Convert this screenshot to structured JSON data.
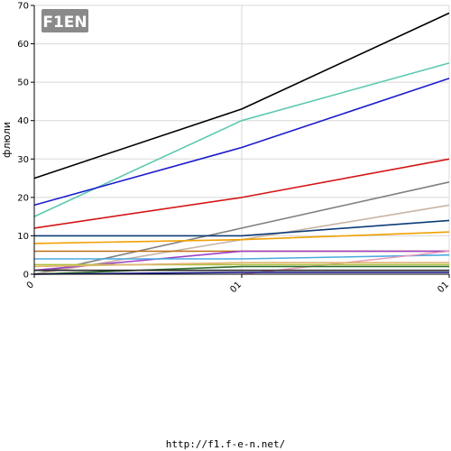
{
  "chart_data": {
    "type": "line",
    "ylabel": "флюли",
    "categories": [
      "0",
      "01",
      "01"
    ],
    "ylim": [
      0,
      70
    ],
    "yticks": [
      0,
      10,
      20,
      30,
      40,
      50,
      60,
      70
    ],
    "grid": true,
    "series": [
      {
        "color": "#000000",
        "values": [
          25,
          43,
          68
        ]
      },
      {
        "color": "#5cc8b0",
        "values": [
          15,
          40,
          55
        ]
      },
      {
        "color": "#1c1ccc",
        "values": [
          18,
          33,
          51
        ]
      },
      {
        "color": "#d41616",
        "values": [
          12,
          20,
          30
        ]
      },
      {
        "color": "#808080",
        "values": [
          0,
          12,
          24
        ]
      },
      {
        "color": "#c8b4a4",
        "values": [
          0,
          9,
          18
        ]
      },
      {
        "color": "#0c3c78",
        "values": [
          10,
          10,
          14
        ]
      },
      {
        "color": "#f0a000",
        "values": [
          8,
          9,
          11
        ]
      },
      {
        "color": "#c06e14",
        "values": [
          6,
          6,
          6
        ]
      },
      {
        "color": "#9b3ec8",
        "values": [
          1,
          6,
          6
        ]
      },
      {
        "color": "#4aa8e0",
        "values": [
          4,
          4,
          5
        ]
      },
      {
        "color": "#e89cbc",
        "values": [
          null,
          0,
          6
        ]
      },
      {
        "color": "#b0c040",
        "values": [
          2.5,
          2.5,
          2.5
        ]
      },
      {
        "color": "#2c6e2c",
        "values": [
          0,
          2,
          2
        ]
      },
      {
        "color": "#e0b470",
        "values": [
          2,
          3,
          3
        ]
      },
      {
        "color": "#2a2a2a",
        "values": [
          1,
          1,
          1
        ]
      },
      {
        "color": "#1c1c8c",
        "values": [
          0,
          0.5,
          0.5
        ]
      }
    ]
  },
  "logo": {
    "text": "F1EN",
    "brand_color": "#f29400"
  },
  "footer": {
    "url": "http://f1.f-e-n.net/"
  }
}
